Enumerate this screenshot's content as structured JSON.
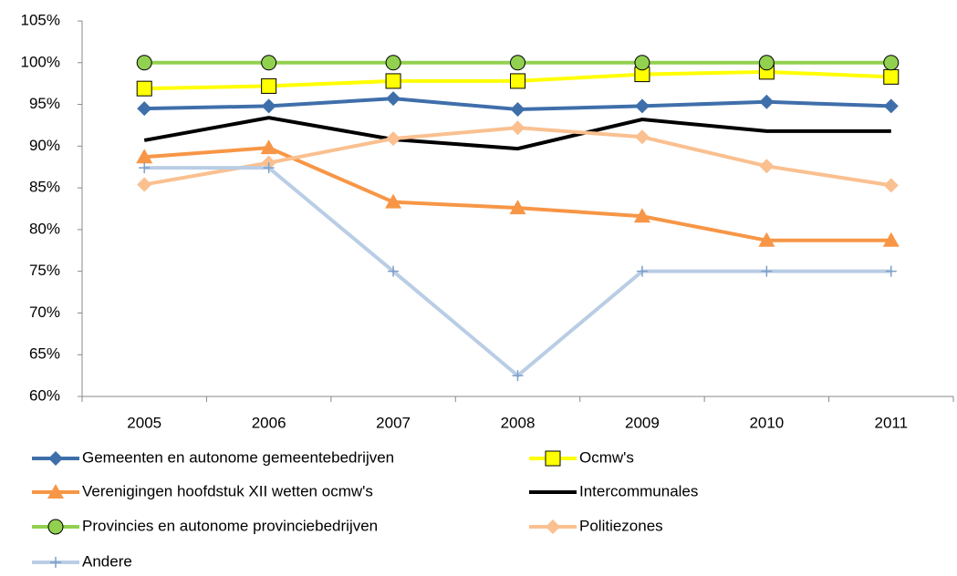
{
  "chart_data": {
    "type": "line",
    "categories": [
      "2005",
      "2006",
      "2007",
      "2008",
      "2009",
      "2010",
      "2011"
    ],
    "series": [
      {
        "name": "Gemeenten en autonome gemeentebedrijven",
        "color": "#3f6faa",
        "marker": "diamond",
        "values": [
          94.5,
          94.8,
          95.7,
          94.4,
          94.8,
          95.3,
          94.8
        ]
      },
      {
        "name": "Ocmw's",
        "color": "#ffff00",
        "marker": "square",
        "values": [
          96.9,
          97.2,
          97.8,
          97.8,
          98.6,
          98.9,
          98.3
        ]
      },
      {
        "name": "Verenigingen hoofdstuk XII wetten ocmw's",
        "color": "#f79646",
        "marker": "triangle",
        "values": [
          88.7,
          89.8,
          83.3,
          82.6,
          81.6,
          78.7,
          78.7
        ]
      },
      {
        "name": "Intercommunales",
        "color": "#000000",
        "marker": "none",
        "values": [
          90.7,
          93.4,
          90.8,
          89.7,
          93.2,
          91.8,
          91.8
        ]
      },
      {
        "name": "Provincies en autonome provinciebedrijven",
        "color": "#92d050",
        "marker": "circle",
        "values": [
          100,
          100,
          100,
          100,
          100,
          100,
          100
        ]
      },
      {
        "name": "Politiezones",
        "color": "#fac090",
        "marker": "diamond",
        "values": [
          85.4,
          88.0,
          90.9,
          92.2,
          91.1,
          87.6,
          85.3
        ]
      },
      {
        "name": "Andere",
        "color": "#b9cde5",
        "marker": "plus",
        "values": [
          87.4,
          87.4,
          75,
          62.5,
          75,
          75,
          75
        ]
      }
    ],
    "ylim": [
      60,
      105
    ],
    "yticks": [
      {
        "value": 60,
        "label": "60%"
      },
      {
        "value": 65,
        "label": "65%"
      },
      {
        "value": 70,
        "label": "70%"
      },
      {
        "value": 75,
        "label": "75%"
      },
      {
        "value": 80,
        "label": "80%"
      },
      {
        "value": 85,
        "label": "85%"
      },
      {
        "value": 90,
        "label": "90%"
      },
      {
        "value": 95,
        "label": "95%"
      },
      {
        "value": 100,
        "label": "100%"
      },
      {
        "value": 105,
        "label": "105%"
      }
    ],
    "grid": false,
    "legend": "bottom"
  }
}
